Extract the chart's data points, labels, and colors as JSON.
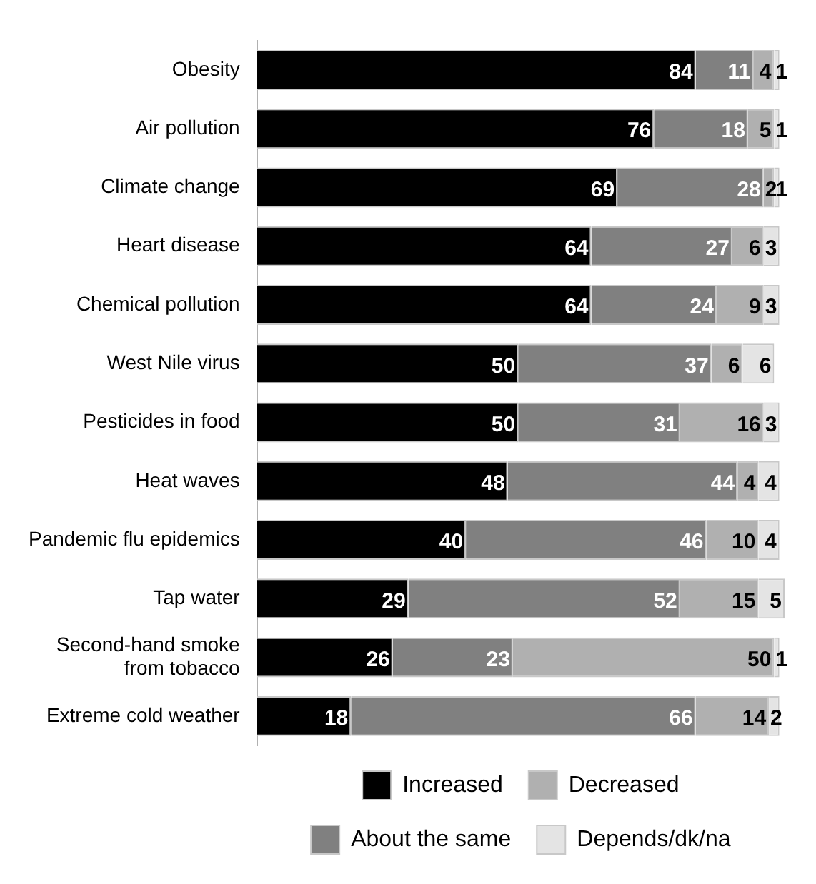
{
  "chart_data": {
    "type": "bar",
    "orientation": "horizontal",
    "stacked": true,
    "data_labels": true,
    "legend": "bottom",
    "tick_labels": "y",
    "xlim": [
      0,
      101
    ],
    "categories": [
      "Obesity",
      "Air pollution",
      "Climate change",
      "Heart disease",
      "Chemical pollution",
      "West Nile virus",
      "Pesticides in food",
      "Heat waves",
      "Pandemic flu epidemics",
      "Tap water",
      "Second-hand smoke from tobacco",
      "Extreme cold weather"
    ],
    "series": [
      {
        "name": "Increased",
        "color": "#000000",
        "values": [
          84,
          76,
          69,
          64,
          64,
          50,
          50,
          48,
          40,
          29,
          26,
          18
        ]
      },
      {
        "name": "About the same",
        "color": "#808080",
        "values": [
          11,
          18,
          28,
          27,
          24,
          37,
          31,
          44,
          46,
          52,
          23,
          66
        ]
      },
      {
        "name": "Decreased",
        "color": "#b0b0b0",
        "values": [
          4,
          5,
          2,
          6,
          9,
          6,
          16,
          4,
          10,
          15,
          50,
          14
        ]
      },
      {
        "name": "Depends/dk/na",
        "color": "#e4e4e4",
        "values": [
          1,
          1,
          1,
          3,
          3,
          6,
          3,
          4,
          4,
          5,
          1,
          2
        ]
      }
    ]
  }
}
